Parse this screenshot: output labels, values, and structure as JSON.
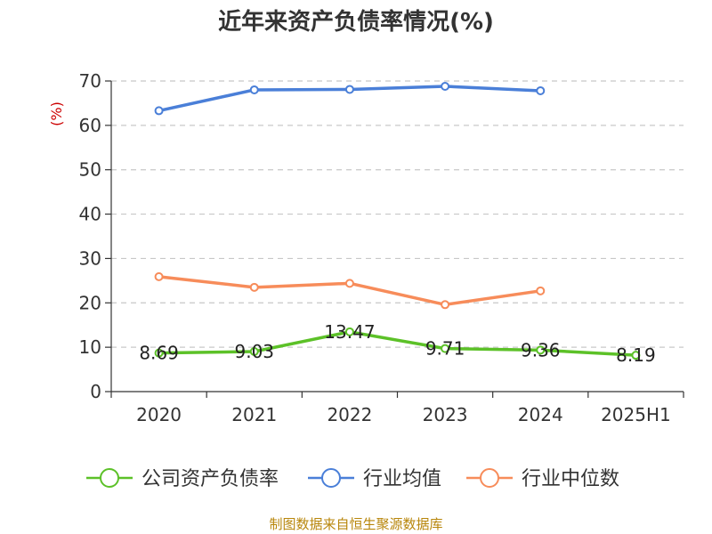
{
  "chart_data": {
    "type": "line",
    "title": "近年来资产负债率情况(%)",
    "ylabel": "(%)",
    "categories": [
      "2020",
      "2021",
      "2022",
      "2023",
      "2024",
      "2025H1"
    ],
    "y_ticks": [
      "0",
      "10",
      "20",
      "30",
      "40",
      "50",
      "60",
      "70"
    ],
    "ylim": [
      0,
      70
    ],
    "grid": true,
    "legend_position": "bottom",
    "series": [
      {
        "name": "公司资产负债率",
        "color": "#5cc128",
        "values": [
          8.69,
          9.03,
          13.47,
          9.71,
          9.36,
          8.19
        ],
        "labels": [
          "8.69",
          "9.03",
          "13.47",
          "9.71",
          "9.36",
          "8.19"
        ]
      },
      {
        "name": "行业均值",
        "color": "#4a7fd8",
        "values": [
          63.3,
          68.0,
          68.1,
          68.8,
          67.8,
          null
        ]
      },
      {
        "name": "行业中位数",
        "color": "#f78c5a",
        "values": [
          25.9,
          23.5,
          24.4,
          19.6,
          22.7,
          null
        ]
      }
    ],
    "source": "制图数据来自恒生聚源数据库"
  }
}
